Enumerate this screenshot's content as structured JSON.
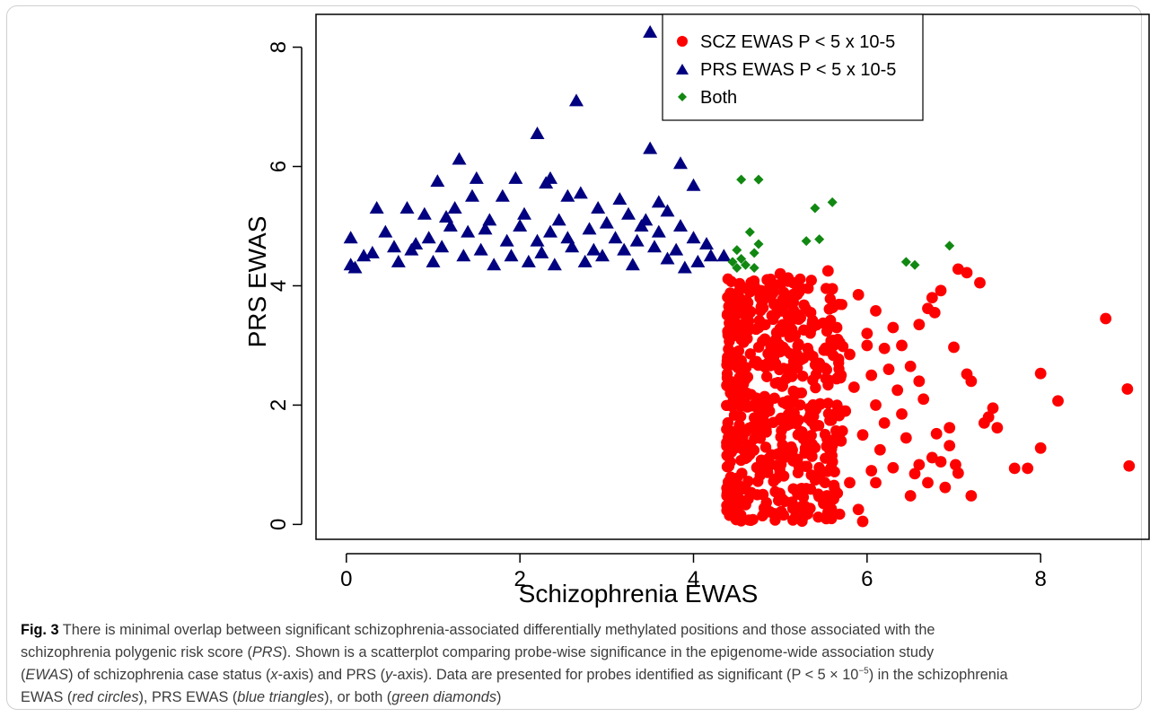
{
  "chart_data": {
    "type": "scatter",
    "xlabel": "Schizophrenia EWAS",
    "ylabel": "PRS EWAS",
    "xlim": [
      -0.35,
      9.25
    ],
    "ylim": [
      -0.25,
      8.55
    ],
    "x_ticks": [
      0,
      2,
      4,
      6,
      8
    ],
    "y_ticks": [
      0,
      2,
      4,
      6,
      8
    ],
    "legend_position": "top-right",
    "series": [
      {
        "name": "SCZ EWAS P < 5 x 10-5",
        "marker": "circle",
        "color": "#ff0000",
        "points": [
          [
            8.75,
            3.45
          ],
          [
            9.0,
            2.27
          ],
          [
            9.02,
            0.98
          ],
          [
            8.2,
            2.07
          ],
          [
            8.0,
            2.53
          ],
          [
            8.0,
            1.28
          ],
          [
            7.85,
            0.94
          ],
          [
            7.7,
            0.94
          ],
          [
            7.5,
            1.62
          ],
          [
            7.45,
            1.95
          ],
          [
            7.4,
            1.8
          ],
          [
            7.35,
            1.7
          ],
          [
            7.2,
            2.4
          ],
          [
            7.15,
            2.52
          ],
          [
            7.3,
            4.05
          ],
          [
            7.15,
            4.22
          ],
          [
            7.05,
            4.28
          ],
          [
            7.2,
            0.48
          ],
          [
            7.05,
            0.86
          ],
          [
            7.02,
            1.0
          ],
          [
            6.95,
            1.32
          ],
          [
            6.95,
            1.62
          ],
          [
            6.9,
            0.62
          ],
          [
            6.85,
            1.05
          ],
          [
            6.8,
            1.52
          ],
          [
            6.75,
            1.12
          ],
          [
            6.7,
            0.7
          ],
          [
            6.65,
            2.1
          ],
          [
            6.6,
            2.4
          ],
          [
            6.6,
            1.0
          ],
          [
            6.55,
            0.85
          ],
          [
            6.5,
            0.48
          ],
          [
            6.45,
            1.45
          ],
          [
            6.4,
            1.85
          ],
          [
            6.35,
            2.25
          ],
          [
            6.3,
            0.95
          ],
          [
            6.25,
            2.6
          ],
          [
            6.2,
            1.7
          ],
          [
            6.15,
            1.25
          ],
          [
            6.1,
            0.7
          ],
          [
            6.05,
            2.5
          ],
          [
            6.0,
            3.0
          ],
          [
            5.95,
            0.05
          ],
          [
            6.05,
            0.9
          ],
          [
            6.1,
            2.0
          ],
          [
            5.95,
            1.5
          ],
          [
            7.0,
            2.97
          ],
          [
            6.78,
            3.55
          ],
          [
            6.7,
            3.62
          ],
          [
            6.75,
            3.8
          ],
          [
            6.85,
            3.92
          ],
          [
            6.6,
            3.35
          ],
          [
            6.4,
            3.0
          ],
          [
            6.5,
            2.65
          ],
          [
            6.3,
            3.3
          ],
          [
            6.2,
            2.95
          ],
          [
            6.1,
            3.58
          ],
          [
            6.0,
            3.2
          ],
          [
            5.9,
            3.85
          ],
          [
            5.8,
            2.85
          ],
          [
            5.85,
            2.3
          ],
          [
            5.75,
            1.9
          ],
          [
            5.7,
            1.4
          ],
          [
            5.8,
            0.7
          ],
          [
            5.65,
            3.3
          ],
          [
            5.6,
            3.95
          ],
          [
            5.55,
            4.25
          ],
          [
            5.7,
            2.5
          ],
          [
            5.6,
            1.05
          ],
          [
            5.5,
            0.35
          ],
          [
            5.45,
            2.7
          ],
          [
            5.4,
            1.65
          ],
          [
            5.35,
            3.55
          ],
          [
            5.3,
            0.6
          ],
          [
            5.9,
            0.25
          ],
          [
            5.55,
            0.2
          ],
          [
            5.25,
            0.3
          ],
          [
            5.2,
            2.2
          ],
          [
            5.15,
            4.05
          ],
          [
            5.1,
            3.7
          ],
          [
            5.05,
            1.2
          ],
          [
            5.0,
            4.2
          ],
          [
            4.95,
            3.1
          ],
          [
            4.9,
            3.85
          ],
          [
            4.85,
            4.1
          ],
          [
            4.8,
            0.5
          ],
          [
            4.75,
            3.3
          ],
          [
            4.7,
            4.0
          ],
          [
            4.65,
            3.9
          ],
          [
            4.6,
            3.65
          ],
          [
            4.55,
            3.1
          ],
          [
            4.5,
            3.85
          ],
          [
            4.45,
            3.45
          ],
          [
            4.4,
            3.2
          ]
        ]
      },
      {
        "name": "PRS EWAS P < 5 x 10-5",
        "marker": "triangle",
        "color": "#000080",
        "points": [
          [
            3.5,
            8.25
          ],
          [
            2.65,
            7.1
          ],
          [
            2.2,
            6.55
          ],
          [
            3.5,
            6.3
          ],
          [
            3.85,
            6.05
          ],
          [
            1.3,
            6.12
          ],
          [
            4.0,
            5.68
          ],
          [
            2.35,
            5.8
          ],
          [
            2.3,
            5.72
          ],
          [
            2.7,
            5.55
          ],
          [
            1.95,
            5.8
          ],
          [
            1.05,
            5.75
          ],
          [
            1.5,
            5.8
          ],
          [
            1.8,
            5.5
          ],
          [
            3.15,
            5.45
          ],
          [
            0.7,
            5.3
          ],
          [
            0.35,
            5.3
          ],
          [
            1.45,
            5.5
          ],
          [
            2.55,
            5.5
          ],
          [
            3.6,
            5.4
          ],
          [
            3.25,
            5.2
          ],
          [
            3.4,
            5.0
          ],
          [
            0.05,
            4.8
          ],
          [
            0.2,
            4.5
          ],
          [
            0.55,
            4.65
          ],
          [
            0.95,
            4.8
          ],
          [
            1.2,
            5.0
          ],
          [
            1.65,
            5.1
          ],
          [
            2.05,
            5.2
          ],
          [
            2.45,
            5.1
          ],
          [
            2.8,
            4.95
          ],
          [
            3.85,
            5.0
          ],
          [
            4.15,
            4.7
          ],
          [
            4.35,
            4.5
          ],
          [
            0.05,
            4.35
          ],
          [
            0.1,
            4.3
          ],
          [
            0.6,
            4.4
          ],
          [
            0.8,
            4.7
          ],
          [
            1.1,
            4.65
          ],
          [
            1.35,
            4.5
          ],
          [
            1.55,
            4.6
          ],
          [
            1.85,
            4.75
          ],
          [
            2.1,
            4.4
          ],
          [
            2.25,
            4.55
          ],
          [
            2.6,
            4.65
          ],
          [
            2.95,
            4.5
          ],
          [
            3.1,
            4.8
          ],
          [
            3.3,
            4.35
          ],
          [
            3.55,
            4.65
          ],
          [
            3.7,
            4.45
          ],
          [
            3.9,
            4.3
          ],
          [
            4.05,
            4.4
          ],
          [
            0.3,
            4.55
          ],
          [
            1.0,
            4.4
          ],
          [
            1.7,
            4.35
          ],
          [
            2.4,
            4.35
          ],
          [
            2.75,
            4.4
          ],
          [
            3.2,
            4.6
          ],
          [
            3.8,
            4.6
          ],
          [
            4.2,
            4.5
          ],
          [
            0.45,
            4.9
          ],
          [
            0.9,
            5.2
          ],
          [
            1.25,
            5.3
          ],
          [
            1.6,
            4.95
          ],
          [
            2.0,
            5.0
          ],
          [
            2.35,
            4.9
          ],
          [
            2.9,
            5.3
          ],
          [
            3.45,
            5.1
          ],
          [
            3.7,
            5.25
          ],
          [
            1.4,
            4.9
          ],
          [
            2.2,
            4.75
          ],
          [
            3.0,
            5.05
          ],
          [
            3.6,
            4.9
          ],
          [
            1.9,
            4.5
          ],
          [
            2.55,
            4.8
          ],
          [
            1.15,
            5.15
          ],
          [
            0.75,
            4.6
          ],
          [
            2.85,
            4.6
          ],
          [
            3.35,
            4.75
          ],
          [
            4.0,
            4.8
          ]
        ]
      },
      {
        "name": "Both",
        "marker": "diamond",
        "color": "#118811",
        "points": [
          [
            4.55,
            5.78
          ],
          [
            4.75,
            5.78
          ],
          [
            5.6,
            5.4
          ],
          [
            5.4,
            5.3
          ],
          [
            5.45,
            4.78
          ],
          [
            5.3,
            4.75
          ],
          [
            6.95,
            4.67
          ],
          [
            6.45,
            4.4
          ],
          [
            6.55,
            4.35
          ],
          [
            4.65,
            4.9
          ],
          [
            4.75,
            4.7
          ],
          [
            4.7,
            4.55
          ],
          [
            4.5,
            4.6
          ],
          [
            4.55,
            4.45
          ],
          [
            4.45,
            4.4
          ],
          [
            4.6,
            4.35
          ],
          [
            4.7,
            4.3
          ],
          [
            4.5,
            4.3
          ]
        ]
      }
    ]
  },
  "caption": {
    "fig_label": "Fig. 3",
    "l1": " There is minimal overlap between significant schizophrenia-associated differentially methylated positions and those associated with the",
    "l2a": "schizophrenia polygenic risk score (",
    "l2b": "PRS",
    "l2c": "). Shown is a scatterplot comparing probe-wise significance in the epigenome-wide association study",
    "l3a": "(",
    "l3b": "EWAS",
    "l3c": ") of schizophrenia case status (",
    "l3d": "x",
    "l3e": "-axis) and PRS (",
    "l3f": "y",
    "l3g": "-axis). Data are presented for probes identified as significant (P < 5 × 10",
    "l3h": "−5",
    "l3i": ") in the schizophrenia",
    "l4a": "EWAS (",
    "l4b": "red circles",
    "l4c": "), PRS EWAS (",
    "l4d": "blue triangles",
    "l4e": "), or both (",
    "l4f": "green diamonds",
    "l4g": ")"
  }
}
